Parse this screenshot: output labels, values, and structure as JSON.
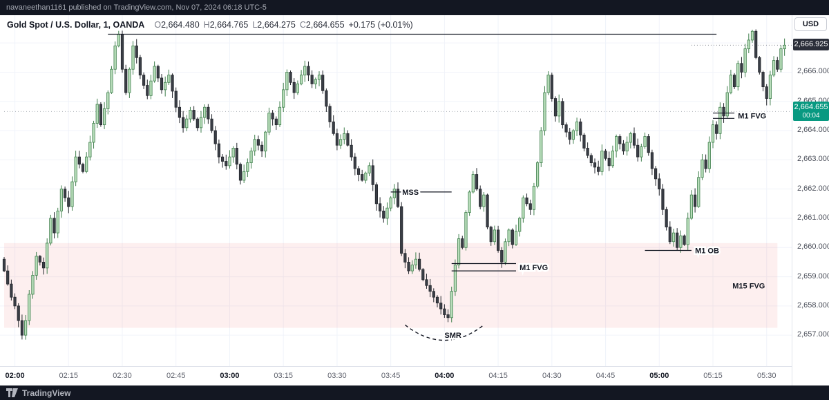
{
  "banner": {
    "text": "navaneethan1161 published on TradingView.com, Nov 07, 2024 06:18 UTC-5"
  },
  "toolbar": {
    "currency_label": "USD"
  },
  "header": {
    "symbol_title": "Gold Spot / U.S. Dollar, 1, OANDA",
    "ohlc": {
      "o_label": "O",
      "o": "2,664.480",
      "h_label": "H",
      "h": "2,664.765",
      "l_label": "L",
      "l": "2,664.275",
      "c_label": "C",
      "c": "2,664.655",
      "change": "+0.175 (+0.01%)"
    }
  },
  "price_axis": {
    "labels": [
      {
        "price": 2666,
        "text": "2,666.000"
      },
      {
        "price": 2665,
        "text": "2,665.000"
      },
      {
        "price": 2664,
        "text": "2,664.000"
      },
      {
        "price": 2663,
        "text": "2,663.000"
      },
      {
        "price": 2662,
        "text": "2,662.000"
      },
      {
        "price": 2661,
        "text": "2,661.000"
      },
      {
        "price": 2660,
        "text": "2,660.000"
      },
      {
        "price": 2659,
        "text": "2,659.000"
      },
      {
        "price": 2658,
        "text": "2,658.000"
      },
      {
        "price": 2657,
        "text": "2,657.000"
      }
    ],
    "last_price_badge": {
      "price": 2666.925,
      "text": "2,666.925"
    },
    "realtime_badge": {
      "price": 2664.655,
      "price_text": "2,664.655",
      "countdown": "00:04"
    }
  },
  "time_axis": {
    "labels": [
      {
        "min": 0,
        "text": "02:00",
        "bold": true
      },
      {
        "min": 15,
        "text": "02:15",
        "bold": false
      },
      {
        "min": 30,
        "text": "02:30",
        "bold": false
      },
      {
        "min": 45,
        "text": "02:45",
        "bold": false
      },
      {
        "min": 60,
        "text": "03:00",
        "bold": true
      },
      {
        "min": 75,
        "text": "03:15",
        "bold": false
      },
      {
        "min": 90,
        "text": "03:30",
        "bold": false
      },
      {
        "min": 105,
        "text": "03:45",
        "bold": false
      },
      {
        "min": 120,
        "text": "04:00",
        "bold": true
      },
      {
        "min": 135,
        "text": "04:15",
        "bold": false
      },
      {
        "min": 150,
        "text": "04:30",
        "bold": false
      },
      {
        "min": 165,
        "text": "04:45",
        "bold": false
      },
      {
        "min": 180,
        "text": "05:00",
        "bold": true
      },
      {
        "min": 195,
        "text": "05:15",
        "bold": false
      },
      {
        "min": 210,
        "text": "05:30",
        "bold": false
      }
    ]
  },
  "footer": {
    "brand": "TradingView"
  },
  "chart_data": {
    "type": "candlestick",
    "symbol": "Gold Spot / U.S. Dollar",
    "exchange": "OANDA",
    "interval": "1",
    "session_date": "Nov 07, 2024",
    "axis": {
      "time_start_min": -3,
      "time_end_min": 217,
      "time_zero_label": "02:00",
      "price_top": 2667.95,
      "price_bottom": 2655.94,
      "h_grid_prices": [
        2657,
        2658,
        2659,
        2660,
        2661,
        2662,
        2663,
        2664,
        2665,
        2666,
        2667
      ],
      "v_grid_minutes": [
        0,
        15,
        30,
        45,
        60,
        75,
        90,
        105,
        120,
        135,
        150,
        165,
        180,
        195,
        210
      ]
    },
    "first_open": 2659.6,
    "price_path_anchors": [
      [
        -3,
        2659.2
      ],
      [
        -1,
        2658.3
      ],
      [
        0,
        2658.0
      ],
      [
        2,
        2657.0
      ],
      [
        3,
        2657.5
      ],
      [
        4,
        2658.4
      ],
      [
        6,
        2659.7
      ],
      [
        8,
        2659.3
      ],
      [
        10,
        2661.0
      ],
      [
        11,
        2660.5
      ],
      [
        13,
        2662.0
      ],
      [
        15,
        2661.4
      ],
      [
        17,
        2663.1
      ],
      [
        19,
        2662.6
      ],
      [
        21,
        2663.6
      ],
      [
        23,
        2664.9
      ],
      [
        24,
        2664.2
      ],
      [
        26,
        2665.3
      ],
      [
        28,
        2666.9
      ],
      [
        29,
        2667.3
      ],
      [
        30,
        2666.1
      ],
      [
        31,
        2665.3
      ],
      [
        33,
        2666.9
      ],
      [
        34,
        2666.5
      ],
      [
        35,
        2665.9
      ],
      [
        37,
        2665.2
      ],
      [
        39,
        2666.2
      ],
      [
        41,
        2665.4
      ],
      [
        43,
        2665.9
      ],
      [
        45,
        2664.8
      ],
      [
        47,
        2664.1
      ],
      [
        49,
        2664.7
      ],
      [
        51,
        2664.1
      ],
      [
        53,
        2664.8
      ],
      [
        55,
        2664.0
      ],
      [
        57,
        2663.1
      ],
      [
        59,
        2662.8
      ],
      [
        61,
        2663.4
      ],
      [
        63,
        2662.3
      ],
      [
        65,
        2662.9
      ],
      [
        67,
        2663.7
      ],
      [
        69,
        2663.3
      ],
      [
        71,
        2664.6
      ],
      [
        73,
        2664.2
      ],
      [
        76,
        2666.0
      ],
      [
        78,
        2665.3
      ],
      [
        81,
        2666.2
      ],
      [
        83,
        2665.6
      ],
      [
        85,
        2665.9
      ],
      [
        88,
        2664.3
      ],
      [
        90,
        2663.5
      ],
      [
        92,
        2663.9
      ],
      [
        95,
        2662.7
      ],
      [
        97,
        2662.3
      ],
      [
        99,
        2662.8
      ],
      [
        101,
        2661.5
      ],
      [
        103,
        2661.0
      ],
      [
        105,
        2661.7
      ],
      [
        106,
        2662.0
      ],
      [
        107,
        2661.4
      ],
      [
        108,
        2659.8
      ],
      [
        110,
        2659.2
      ],
      [
        112,
        2659.6
      ],
      [
        114,
        2658.9
      ],
      [
        116,
        2658.5
      ],
      [
        118,
        2658.1
      ],
      [
        120,
        2657.7
      ],
      [
        121,
        2657.6
      ],
      [
        122,
        2658.5
      ],
      [
        123,
        2659.4
      ],
      [
        124,
        2660.3
      ],
      [
        125,
        2660.0
      ],
      [
        126,
        2661.2
      ],
      [
        127,
        2661.9
      ],
      [
        128,
        2662.5
      ],
      [
        129,
        2662.0
      ],
      [
        130,
        2661.4
      ],
      [
        131,
        2661.8
      ],
      [
        132,
        2660.7
      ],
      [
        133,
        2660.2
      ],
      [
        134,
        2660.6
      ],
      [
        135,
        2659.9
      ],
      [
        136,
        2659.5
      ],
      [
        137,
        2660.2
      ],
      [
        138,
        2660.6
      ],
      [
        139,
        2660.1
      ],
      [
        141,
        2661.0
      ],
      [
        142,
        2661.7
      ],
      [
        144,
        2661.3
      ],
      [
        146,
        2662.9
      ],
      [
        147,
        2664.0
      ],
      [
        148,
        2665.3
      ],
      [
        149,
        2665.9
      ],
      [
        150,
        2665.1
      ],
      [
        151,
        2664.5
      ],
      [
        152,
        2665.0
      ],
      [
        153,
        2664.2
      ],
      [
        155,
        2663.7
      ],
      [
        157,
        2664.3
      ],
      [
        159,
        2663.4
      ],
      [
        161,
        2662.9
      ],
      [
        163,
        2662.6
      ],
      [
        164,
        2663.3
      ],
      [
        166,
        2662.8
      ],
      [
        168,
        2663.8
      ],
      [
        170,
        2663.3
      ],
      [
        172,
        2663.9
      ],
      [
        174,
        2663.1
      ],
      [
        176,
        2663.8
      ],
      [
        178,
        2662.7
      ],
      [
        180,
        2662.0
      ],
      [
        181,
        2661.3
      ],
      [
        182,
        2660.7
      ],
      [
        183,
        2660.2
      ],
      [
        184,
        2660.5
      ],
      [
        185,
        2660.0
      ],
      [
        186,
        2660.4
      ],
      [
        187,
        2660.1
      ],
      [
        188,
        2661.0
      ],
      [
        189,
        2661.8
      ],
      [
        190,
        2661.4
      ],
      [
        191,
        2662.4
      ],
      [
        192,
        2663.0
      ],
      [
        193,
        2662.7
      ],
      [
        194,
        2663.6
      ],
      [
        195,
        2664.2
      ],
      [
        196,
        2663.9
      ],
      [
        197,
        2664.8
      ],
      [
        198,
        2664.5
      ],
      [
        199,
        2665.3
      ],
      [
        200,
        2665.9
      ],
      [
        201,
        2665.5
      ],
      [
        202,
        2666.3
      ],
      [
        203,
        2666.0
      ],
      [
        204,
        2666.8
      ],
      [
        205,
        2667.1
      ],
      [
        206,
        2667.4
      ],
      [
        207,
        2666.5
      ],
      [
        208,
        2666.0
      ],
      [
        209,
        2665.5
      ],
      [
        210,
        2665.1
      ],
      [
        211,
        2665.9
      ],
      [
        212,
        2666.4
      ],
      [
        213,
        2666.1
      ],
      [
        214,
        2666.8
      ],
      [
        215,
        2666.925
      ]
    ],
    "zones": [
      {
        "id": "m15-fvg",
        "label": "M15 FVG",
        "price_top": 2660.15,
        "price_bottom": 2657.25,
        "from_min": -3,
        "to_min": 213,
        "label_min": 205,
        "label_price": 2658.6
      }
    ],
    "price_lines": [
      {
        "id": "last-price-line",
        "price": 2664.655,
        "from_min": -3,
        "to_min": 217,
        "color": "#aeb2ba",
        "dash": "1 3"
      },
      {
        "id": "current-bar-price-line",
        "price": 2666.925,
        "from_min": 189,
        "to_min": 217,
        "color": "#787b86",
        "dash": "1 3"
      }
    ],
    "annotations": [
      {
        "id": "high-liquidity-line",
        "type": "line",
        "price": 2667.3,
        "from_min": 26,
        "to_min": 196,
        "label": ""
      },
      {
        "id": "mss",
        "type": "line",
        "price": 2661.9,
        "from_min": 105,
        "to_min": 122,
        "label": "MSS",
        "label_min": 110.5,
        "label_align": "center"
      },
      {
        "id": "m1-fvg-low",
        "type": "fvg",
        "prices": [
          2659.45,
          2659.2
        ],
        "from_min": 122,
        "to_min": 140,
        "label": "M1 FVG",
        "label_min": 141,
        "label_align": "left"
      },
      {
        "id": "m1-ob",
        "type": "line",
        "price": 2659.9,
        "from_min": 176,
        "to_min": 189,
        "label": "M1 OB",
        "label_min": 190,
        "label_align": "left"
      },
      {
        "id": "m1-fvg-high",
        "type": "fvg",
        "prices": [
          2664.6,
          2664.42
        ],
        "from_min": 195,
        "to_min": 201,
        "label": "M1 FVG",
        "label_min": 202,
        "label_align": "left"
      },
      {
        "id": "smr",
        "type": "arc",
        "from_min": 109,
        "to_min": 131,
        "edge_price": 2657.35,
        "dip_price": 2656.3,
        "label": "SMR",
        "label_min": 120,
        "label_price": 2657.0
      }
    ],
    "colors": {
      "up_fill": "#b8ddba",
      "up_border": "#3f7f4c",
      "down_fill": "#3a3e46",
      "down_border": "#23262c",
      "grid": "#f0f3fa",
      "axis_text": "#4a4e59",
      "annotation": "#131722",
      "zone_fill": "rgba(242,128,132,0.13)",
      "badge_dark_bg": "#2a2e39",
      "badge_green_bg": "#089981"
    }
  }
}
